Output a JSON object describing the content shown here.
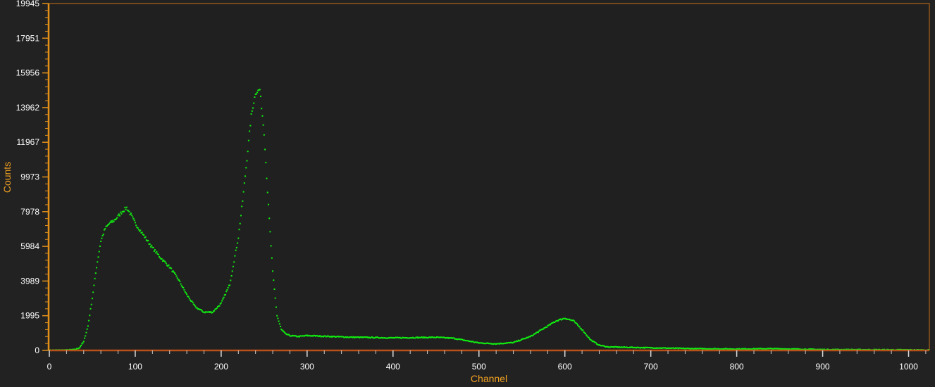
{
  "chart_data": {
    "type": "scatter",
    "xlabel": "Channel",
    "ylabel": "Counts",
    "xlim": [
      0,
      1023
    ],
    "ylim": [
      0,
      19945
    ],
    "x_ticks": [
      0,
      100,
      200,
      300,
      400,
      500,
      600,
      700,
      800,
      900,
      1000
    ],
    "y_ticks": [
      0,
      1995,
      3989,
      5984,
      7978,
      9973,
      11967,
      13962,
      15956,
      17951,
      19945
    ],
    "grid": false,
    "legend": "none",
    "colors": {
      "background": "#202020",
      "points": "#11ee11",
      "frame": "#c87010",
      "baseline": "#b8501a",
      "axis_title": "#f0a020",
      "tick_label": "#ffffff"
    },
    "series": [
      {
        "x": [
          0,
          20,
          30,
          35,
          40,
          45,
          50,
          55,
          60,
          65,
          70,
          75,
          80,
          85,
          90,
          95,
          100,
          110,
          120,
          130,
          140,
          150,
          160,
          170,
          180,
          190,
          200,
          210,
          220,
          225,
          230,
          235,
          240,
          245,
          250,
          255,
          260,
          265,
          270,
          275,
          280,
          290,
          300,
          350,
          400,
          450,
          470,
          500,
          520,
          540,
          560,
          580,
          590,
          600,
          610,
          620,
          630,
          640,
          650,
          700,
          750,
          800,
          840,
          900,
          1000,
          1023
        ],
        "y": [
          10,
          20,
          50,
          150,
          500,
          1400,
          3000,
          4800,
          6300,
          7000,
          7300,
          7450,
          7700,
          8000,
          8200,
          7800,
          7300,
          6600,
          5900,
          5300,
          4800,
          4100,
          3200,
          2500,
          2200,
          2200,
          2700,
          3800,
          6500,
          8600,
          11000,
          13500,
          14800,
          15000,
          12500,
          8300,
          4500,
          2000,
          1200,
          950,
          850,
          800,
          850,
          760,
          720,
          750,
          700,
          430,
          380,
          450,
          800,
          1400,
          1700,
          1850,
          1700,
          1200,
          600,
          300,
          200,
          150,
          100,
          80,
          100,
          50,
          30,
          20
        ]
      }
    ]
  }
}
